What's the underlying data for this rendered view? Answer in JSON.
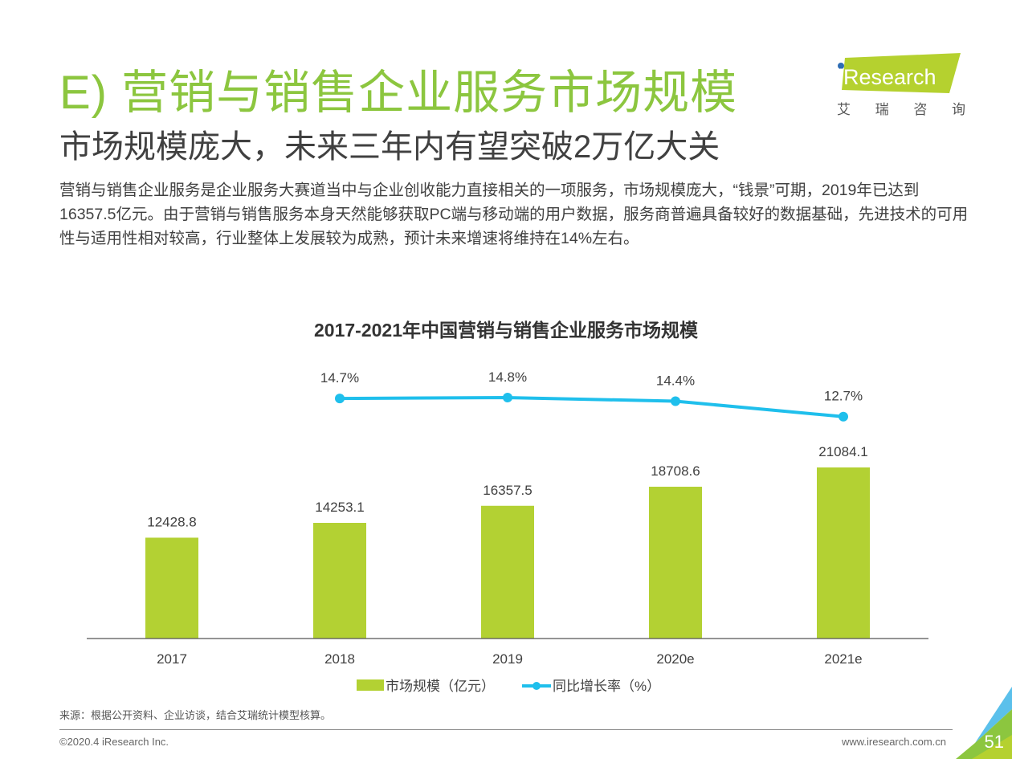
{
  "header": {
    "title": "E) 营销与销售企业服务市场规模",
    "subtitle": "市场规模庞大，未来三年内有望突破2万亿大关",
    "paragraph": "营销与销售企业服务是企业服务大赛道当中与企业创收能力直接相关的一项服务，市场规模庞大，“钱景”可期，2019年已达到16357.5亿元。由于营销与销售服务本身天然能够获取PC端与移动端的用户数据，服务商普遍具备较好的数据基础，先进技术的可用性与适用性相对较高，行业整体上发展较为成熟，预计未来增速将维持在14%左右。"
  },
  "logo": {
    "text": "iResearch",
    "cn_chars": [
      "艾",
      "瑞",
      "咨",
      "询"
    ],
    "brand_green": "#b5d12f",
    "dot_blue": "#2e6db4"
  },
  "colors": {
    "title_green": "#8cc63f",
    "bar_green": "#b3d133",
    "line_blue": "#1fbfec",
    "text_dark": "#404040"
  },
  "chart_data": {
    "type": "bar",
    "title": "2017-2021年中国营销与销售企业服务市场规模",
    "categories": [
      "2017",
      "2018",
      "2019",
      "2020e",
      "2021e"
    ],
    "series": [
      {
        "name": "市场规模（亿元）",
        "type": "bar",
        "values": [
          12428.8,
          14253.1,
          16357.5,
          18708.6,
          21084.1
        ],
        "labels": [
          "12428.8",
          "14253.1",
          "16357.5",
          "18708.6",
          "21084.1"
        ]
      },
      {
        "name": "同比增长率（%）",
        "type": "line",
        "values": [
          null,
          14.7,
          14.8,
          14.4,
          12.7
        ],
        "labels": [
          "",
          "14.7%",
          "14.8%",
          "14.4%",
          "12.7%"
        ]
      }
    ],
    "xlabel": "",
    "ylabel": "",
    "ylim": [
      0,
      21084.1
    ],
    "grid": false,
    "legend_position": "bottom"
  },
  "legend": {
    "bar_label": "市场规模（亿元）",
    "line_label": "同比增长率（%）"
  },
  "footer": {
    "source": "来源：根据公开资料、企业访谈，结合艾瑞统计模型核算。",
    "copyright": "©2020.4 iResearch Inc.",
    "website": "www.iresearch.com.cn",
    "page_number": "51"
  }
}
